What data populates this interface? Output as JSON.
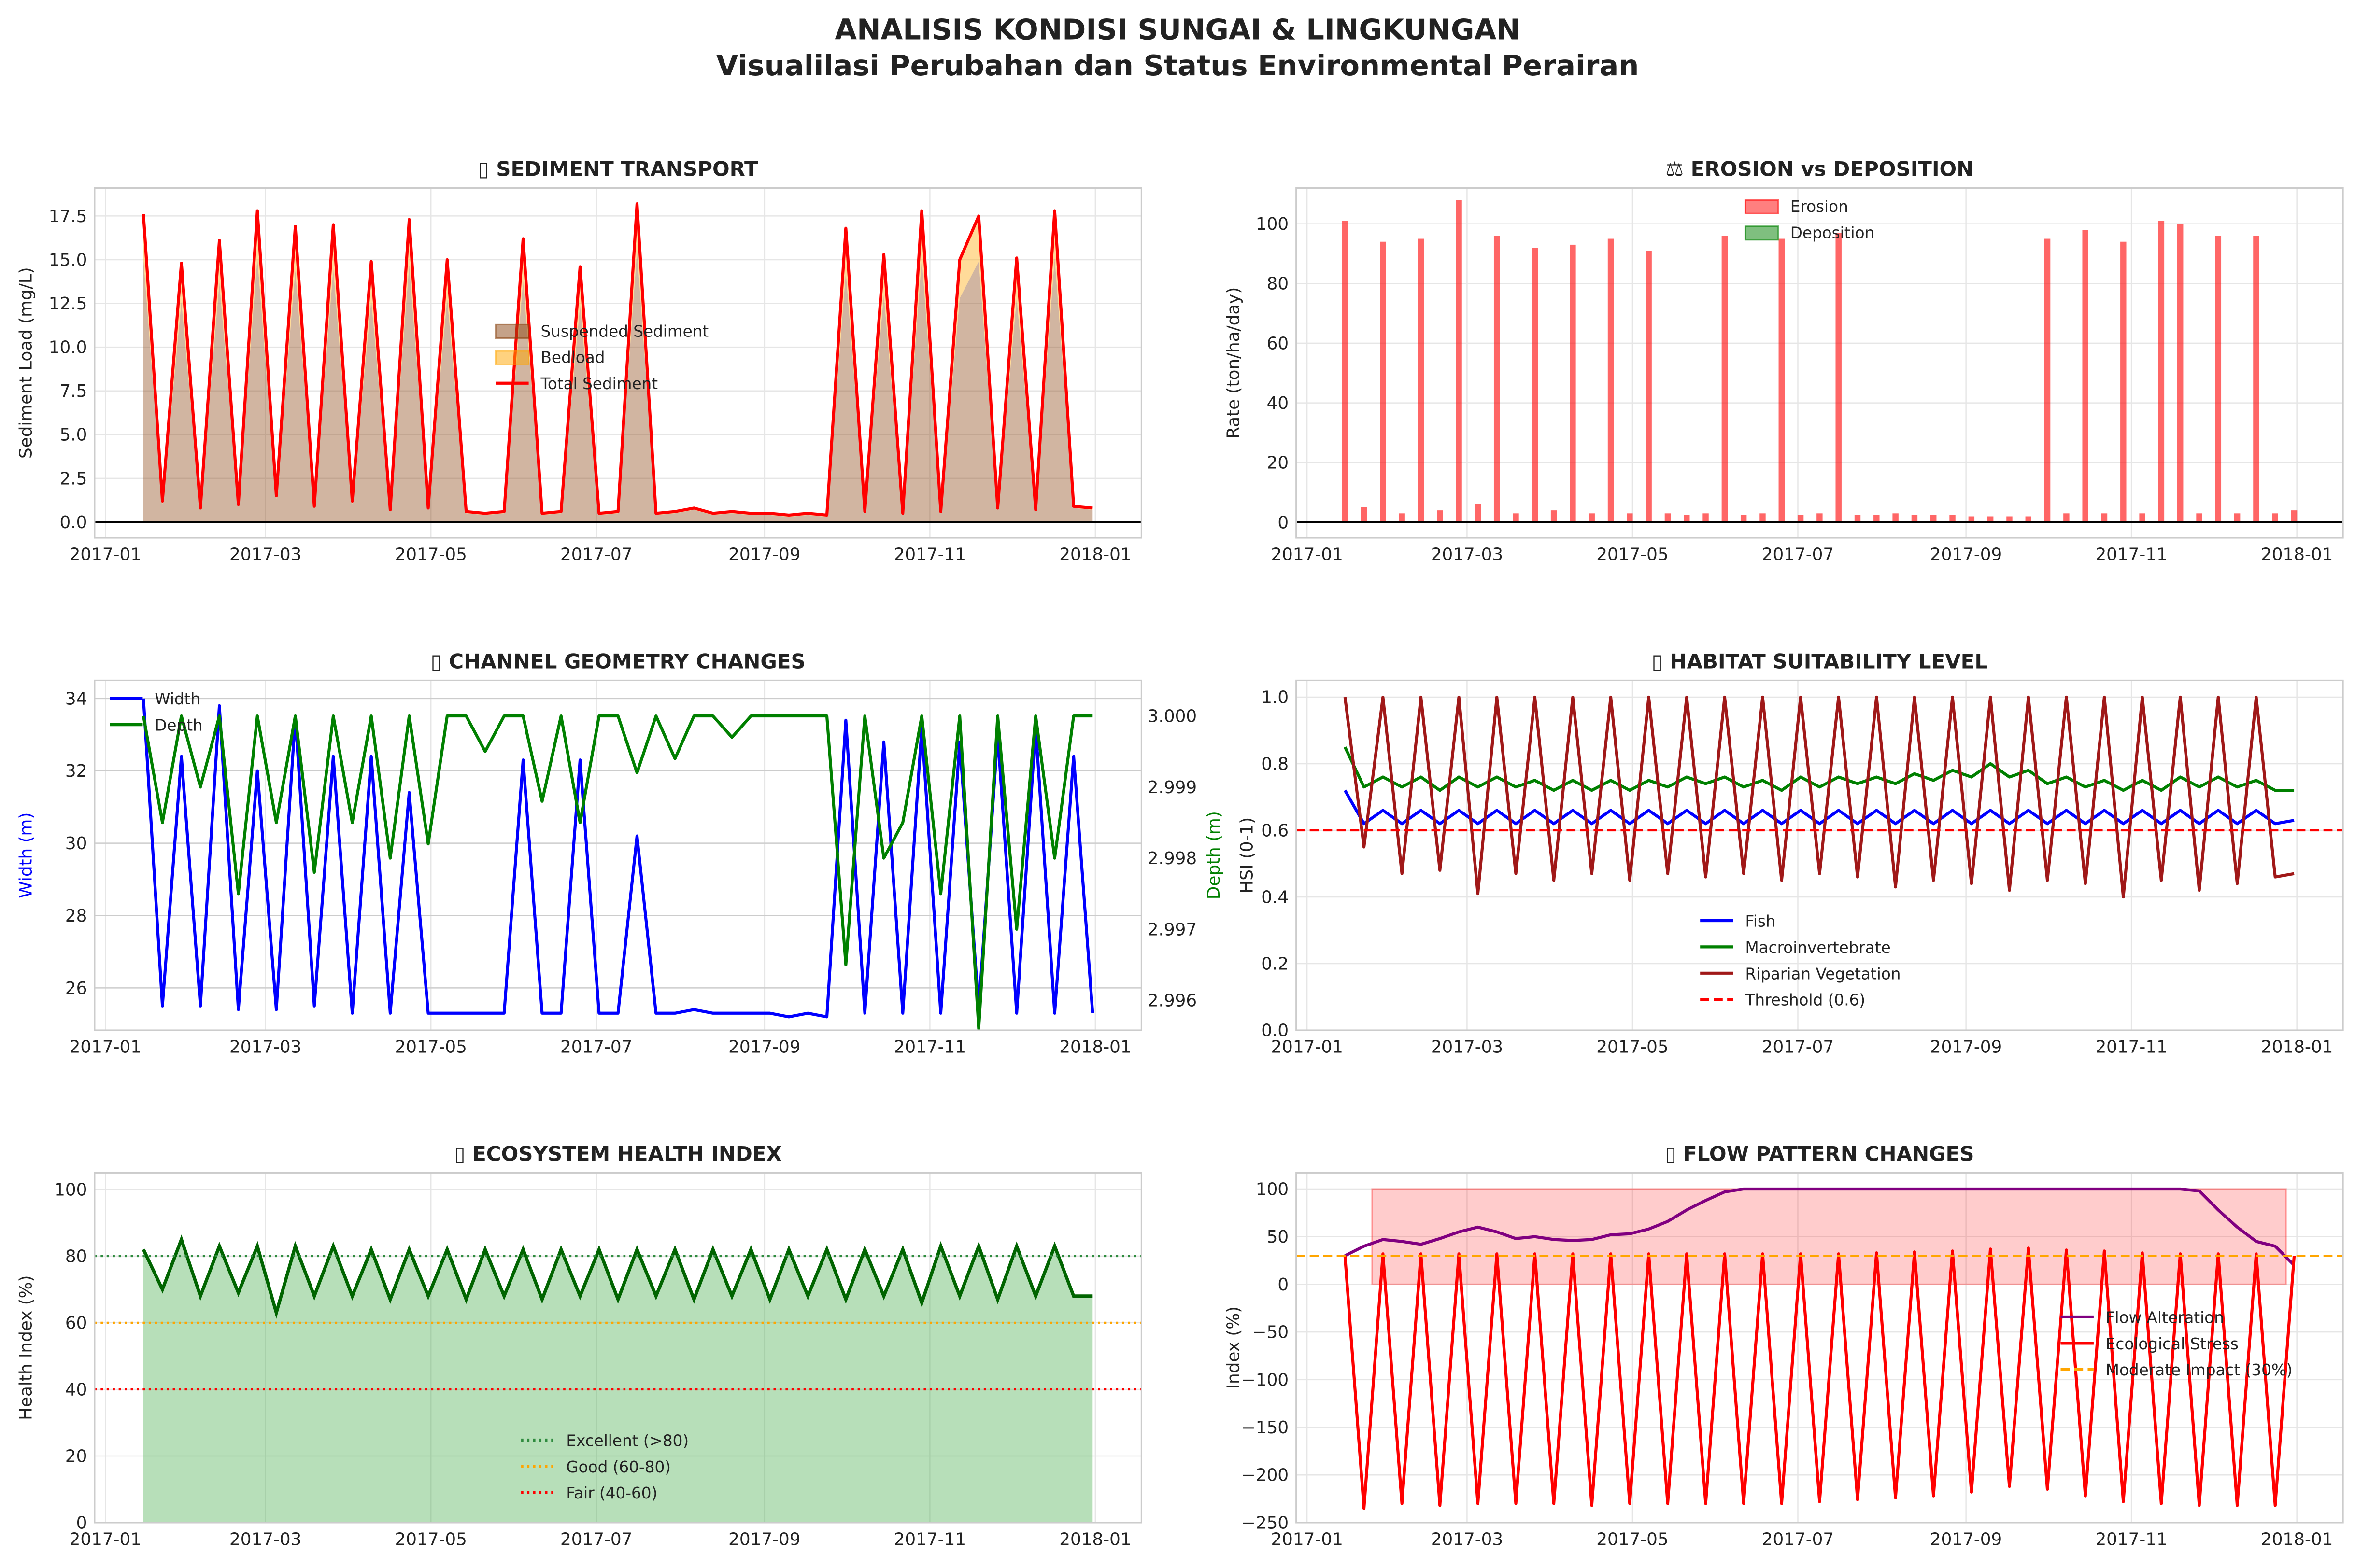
{
  "figure": {
    "title_line1": "ANALISIS KONDISI SUNGAI & LINGKUNGAN",
    "title_line2": "Visualilasi Perubahan dan Status Environmental Perairan"
  },
  "chart_data": [
    {
      "type": "line",
      "title": "▯ SEDIMENT TRANSPORT",
      "ylabel": "Sediment Load (mg/L)",
      "xlim": [
        "2016-12-28",
        "2018-01-18"
      ],
      "ylim": [
        -0.9,
        19.1
      ],
      "yticks": [
        0,
        2.5,
        5,
        7.5,
        10,
        12.5,
        15,
        17.5
      ],
      "ytick_labels": [
        "0.0",
        "2.5",
        "5.0",
        "7.5",
        "10.0",
        "12.5",
        "15.0",
        "17.5"
      ],
      "xtick_labels": [
        "2017-01",
        "2017-03",
        "2017-05",
        "2017-07",
        "2017-09",
        "2017-11",
        "2018-01"
      ],
      "x_start": "2017-01-15",
      "x_step_days": 7,
      "legend": "center",
      "series": [
        {
          "name": "Suspended Sediment",
          "kind": "area",
          "color": "#8b4513",
          "values": [
            15.0,
            1.0,
            12.6,
            0.7,
            13.7,
            0.9,
            15.1,
            1.3,
            14.4,
            0.8,
            14.5,
            1.0,
            12.7,
            0.6,
            14.7,
            0.7,
            12.8,
            0.5,
            0.4,
            0.5,
            13.8,
            0.4,
            0.5,
            12.4,
            0.4,
            0.5,
            15.5,
            0.4,
            0.5,
            0.7,
            0.4,
            0.5,
            0.4,
            0.4,
            0.3,
            0.4,
            0.3,
            14.3,
            0.5,
            13.0,
            0.4,
            15.1,
            0.5,
            12.8,
            14.9,
            0.7,
            12.8,
            0.6,
            15.1,
            0.8,
            0.7
          ]
        },
        {
          "name": "Bedload",
          "kind": "stacked-area",
          "color": "#ffa500",
          "values": [
            2.6,
            0.2,
            2.2,
            0.1,
            2.4,
            0.1,
            2.7,
            0.2,
            2.5,
            0.1,
            2.5,
            0.2,
            2.2,
            0.1,
            2.6,
            0.1,
            2.2,
            0.1,
            0.1,
            0.1,
            2.4,
            0.1,
            0.1,
            2.2,
            0.1,
            0.1,
            2.7,
            0.1,
            0.1,
            0.1,
            0.1,
            0.1,
            0.1,
            0.1,
            0.1,
            0.1,
            0.1,
            2.5,
            0.1,
            2.3,
            0.1,
            2.7,
            0.1,
            2.2,
            2.6,
            0.1,
            2.3,
            0.1,
            2.7,
            0.1,
            0.1
          ]
        },
        {
          "name": "Total Sediment",
          "kind": "line",
          "color": "#ff0000",
          "values": [
            17.6,
            1.2,
            14.8,
            0.8,
            16.1,
            1.0,
            17.8,
            1.5,
            16.9,
            0.9,
            17.0,
            1.2,
            14.9,
            0.7,
            17.3,
            0.8,
            15.0,
            0.6,
            0.5,
            0.6,
            16.2,
            0.5,
            0.6,
            14.6,
            0.5,
            0.6,
            18.2,
            0.5,
            0.6,
            0.8,
            0.5,
            0.6,
            0.5,
            0.5,
            0.4,
            0.5,
            0.4,
            16.8,
            0.6,
            15.3,
            0.5,
            17.8,
            0.6,
            15.0,
            17.5,
            0.8,
            15.1,
            0.7,
            17.8,
            0.9,
            0.8
          ]
        }
      ],
      "hlines": [
        {
          "label": "",
          "value": 0,
          "color": "#000000",
          "style": "solid"
        }
      ]
    },
    {
      "type": "bar",
      "title": "⚖ EROSION vs DEPOSITION",
      "ylabel": "Rate (ton/ha/day)",
      "xlim": [
        "2016-12-28",
        "2018-01-18"
      ],
      "ylim": [
        -5.2,
        112
      ],
      "yticks": [
        0,
        20,
        40,
        60,
        80,
        100
      ],
      "ytick_labels": [
        "0",
        "20",
        "40",
        "60",
        "80",
        "100"
      ],
      "xtick_labels": [
        "2017-01",
        "2017-03",
        "2017-05",
        "2017-07",
        "2017-09",
        "2017-11",
        "2018-01"
      ],
      "x_start": "2017-01-15",
      "x_step_days": 7,
      "legend": "upper center",
      "series": [
        {
          "name": "Erosion",
          "kind": "bar",
          "color": "#ff0000",
          "values": [
            101,
            5,
            94,
            3,
            95,
            4,
            108,
            6,
            96,
            3,
            92,
            4,
            93,
            3,
            95,
            3,
            91,
            3,
            2.5,
            3,
            96,
            2.5,
            3,
            95,
            2.5,
            3,
            97,
            2.5,
            2.5,
            3,
            2.5,
            2.5,
            2.5,
            2,
            2,
            2,
            2,
            95,
            3,
            98,
            3,
            94,
            3,
            101,
            100,
            3,
            96,
            3,
            96,
            3,
            4
          ]
        },
        {
          "name": "Deposition",
          "kind": "bar",
          "color": "#008000",
          "values": [
            0,
            0,
            0,
            0,
            0,
            0,
            0,
            0,
            0,
            0,
            0,
            0,
            0,
            0,
            0,
            0,
            0,
            0,
            0,
            0,
            0,
            0,
            0,
            0,
            0,
            0,
            0,
            0,
            0,
            0,
            0,
            0,
            0,
            0,
            0,
            0,
            0,
            0,
            0,
            0,
            0,
            0,
            0,
            0,
            0,
            0,
            0,
            0,
            0,
            0,
            0
          ]
        }
      ],
      "hlines": [
        {
          "label": "",
          "value": 0,
          "color": "#000000",
          "style": "solid"
        }
      ]
    },
    {
      "type": "line",
      "title": "▯ CHANNEL GEOMETRY CHANGES",
      "ylabel": "Width (m)",
      "ylabel_color": "#0000ff",
      "ylabel_right": "Depth (m)",
      "ylabel_right_color": "#008000",
      "xlim": [
        "2016-12-28",
        "2018-01-18"
      ],
      "ylim": [
        24.83,
        34.5
      ],
      "ylim_right": [
        2.99558,
        3.0005
      ],
      "yticks": [
        26,
        28,
        30,
        32,
        34
      ],
      "ytick_labels": [
        "26",
        "28",
        "30",
        "32",
        "34"
      ],
      "yticks_right": [
        2.996,
        2.997,
        2.998,
        2.999,
        3.0
      ],
      "ytick_labels_right": [
        "2.996",
        "2.997",
        "2.998",
        "2.999",
        "3.000"
      ],
      "xtick_labels": [
        "2017-01",
        "2017-03",
        "2017-05",
        "2017-07",
        "2017-09",
        "2017-11",
        "2018-01"
      ],
      "x_start": "2017-01-15",
      "x_step_days": 7,
      "legend": "upper left",
      "series": [
        {
          "name": "Width",
          "kind": "line",
          "axis": "left",
          "color": "#0000ff",
          "values": [
            34,
            25.5,
            32.4,
            25.5,
            33.8,
            25.4,
            32,
            25.4,
            33.5,
            25.5,
            32.4,
            25.3,
            32.4,
            25.3,
            31.4,
            25.3,
            25.3,
            25.3,
            25.3,
            25.3,
            32.3,
            25.3,
            25.3,
            32.3,
            25.3,
            25.3,
            30.2,
            25.3,
            25.3,
            25.4,
            25.3,
            25.3,
            25.3,
            25.3,
            25.2,
            25.3,
            25.2,
            33.4,
            25.3,
            32.8,
            25.3,
            33.2,
            25.3,
            32.8,
            25.4,
            33.0,
            25.3,
            33.2,
            25.3,
            32.4,
            25.3
          ]
        },
        {
          "name": "Depth",
          "kind": "line",
          "axis": "right",
          "color": "#008000",
          "values": [
            3.0,
            2.9985,
            3.0,
            2.999,
            3.0,
            2.9975,
            3.0,
            2.9985,
            3.0,
            2.9978,
            3.0,
            2.9985,
            3.0,
            2.998,
            3.0,
            2.9982,
            3.0,
            3.0,
            2.9995,
            3.0,
            3.0,
            2.9988,
            3.0,
            2.9985,
            3.0,
            3.0,
            2.9992,
            3.0,
            2.9994,
            3.0,
            3.0,
            2.9997,
            3.0,
            3.0,
            3.0,
            3.0,
            3.0,
            2.9965,
            3.0,
            2.998,
            2.9985,
            3.0,
            2.9975,
            3.0,
            2.9956,
            3.0,
            2.997,
            3.0,
            2.998,
            3.0,
            3.0
          ]
        }
      ],
      "hlines": []
    },
    {
      "type": "line",
      "title": "▯ HABITAT SUITABILITY LEVEL",
      "ylabel": "HSI (0-1)",
      "xlim": [
        "2016-12-28",
        "2018-01-18"
      ],
      "ylim": [
        0,
        1.05
      ],
      "yticks": [
        0,
        0.2,
        0.4,
        0.6,
        0.8,
        1.0
      ],
      "ytick_labels": [
        "0.0",
        "0.2",
        "0.4",
        "0.6",
        "0.8",
        "1.0"
      ],
      "xtick_labels": [
        "2017-01",
        "2017-03",
        "2017-05",
        "2017-07",
        "2017-09",
        "2017-11",
        "2018-01"
      ],
      "x_start": "2017-01-15",
      "x_step_days": 7,
      "legend": "lower center",
      "series": [
        {
          "name": "Fish",
          "kind": "line",
          "color": "#0000ff",
          "values": [
            0.72,
            0.62,
            0.66,
            0.62,
            0.66,
            0.62,
            0.66,
            0.62,
            0.66,
            0.62,
            0.66,
            0.62,
            0.66,
            0.62,
            0.66,
            0.62,
            0.66,
            0.62,
            0.66,
            0.62,
            0.66,
            0.62,
            0.66,
            0.62,
            0.66,
            0.62,
            0.66,
            0.62,
            0.66,
            0.62,
            0.66,
            0.62,
            0.66,
            0.62,
            0.66,
            0.62,
            0.66,
            0.62,
            0.66,
            0.62,
            0.66,
            0.62,
            0.66,
            0.62,
            0.66,
            0.62,
            0.66,
            0.62,
            0.66,
            0.62,
            0.63
          ]
        },
        {
          "name": "Macroinvertebrate",
          "kind": "line",
          "color": "#008000",
          "values": [
            0.85,
            0.73,
            0.76,
            0.73,
            0.76,
            0.72,
            0.76,
            0.73,
            0.76,
            0.73,
            0.75,
            0.72,
            0.75,
            0.72,
            0.75,
            0.72,
            0.75,
            0.73,
            0.76,
            0.74,
            0.76,
            0.73,
            0.75,
            0.72,
            0.76,
            0.73,
            0.76,
            0.74,
            0.76,
            0.74,
            0.77,
            0.75,
            0.78,
            0.76,
            0.8,
            0.76,
            0.78,
            0.74,
            0.76,
            0.73,
            0.75,
            0.72,
            0.75,
            0.72,
            0.76,
            0.73,
            0.76,
            0.73,
            0.75,
            0.72,
            0.72
          ]
        },
        {
          "name": "Riparian Vegetation",
          "kind": "line",
          "color": "#a01818",
          "values": [
            1.0,
            0.55,
            1.0,
            0.47,
            1.0,
            0.48,
            1.0,
            0.41,
            1.0,
            0.47,
            1.0,
            0.45,
            1.0,
            0.47,
            1.0,
            0.45,
            1.0,
            0.47,
            1.0,
            0.46,
            1.0,
            0.47,
            1.0,
            0.45,
            1.0,
            0.47,
            1.0,
            0.46,
            1.0,
            0.43,
            1.0,
            0.45,
            1.0,
            0.44,
            1.0,
            0.42,
            1.0,
            0.45,
            1.0,
            0.44,
            1.0,
            0.4,
            1.0,
            0.45,
            1.0,
            0.42,
            1.0,
            0.44,
            1.0,
            0.46,
            0.47
          ]
        }
      ],
      "hlines": [
        {
          "label": "Threshold (0.6)",
          "value": 0.6,
          "color": "#ff0000",
          "style": "dashed"
        }
      ]
    },
    {
      "type": "area",
      "title": "▯ ECOSYSTEM HEALTH INDEX",
      "ylabel": "Health Index (%)",
      "xlim": [
        "2016-12-28",
        "2018-01-18"
      ],
      "ylim": [
        0,
        105
      ],
      "yticks": [
        0,
        20,
        40,
        60,
        80,
        100
      ],
      "ytick_labels": [
        "0",
        "20",
        "40",
        "60",
        "80",
        "100"
      ],
      "xtick_labels": [
        "2017-01",
        "2017-03",
        "2017-05",
        "2017-07",
        "2017-09",
        "2017-11",
        "2018-01"
      ],
      "x_start": "2017-01-15",
      "x_step_days": 7,
      "legend": "lower center",
      "series": [
        {
          "name": "Health Index",
          "kind": "area-line",
          "color": "#006400",
          "fill": "#4caf50",
          "values": [
            82,
            70,
            85,
            68,
            83,
            69,
            83,
            63,
            83,
            68,
            83,
            68,
            82,
            67,
            82,
            68,
            82,
            67,
            82,
            68,
            82,
            67,
            82,
            68,
            82,
            67,
            82,
            68,
            82,
            67,
            82,
            68,
            82,
            67,
            82,
            68,
            82,
            67,
            82,
            68,
            82,
            66,
            83,
            68,
            83,
            67,
            83,
            68,
            83,
            68,
            68
          ]
        }
      ],
      "hlines": [
        {
          "label": "Excellent (>80)",
          "value": 80,
          "color": "#2e8b3e",
          "style": "dotted"
        },
        {
          "label": "Good (60-80)",
          "value": 60,
          "color": "#ffa500",
          "style": "dotted"
        },
        {
          "label": "Fair (40-60)",
          "value": 40,
          "color": "#ff0000",
          "style": "dotted"
        }
      ]
    },
    {
      "type": "line",
      "title": "▯ FLOW PATTERN CHANGES",
      "ylabel": "Index (%)",
      "xlim": [
        "2016-12-28",
        "2018-01-18"
      ],
      "ylim": [
        -250,
        117
      ],
      "yticks": [
        -250,
        -200,
        -150,
        -100,
        -50,
        0,
        50,
        100
      ],
      "ytick_labels": [
        "−250",
        "−200",
        "−150",
        "−100",
        "−50",
        "0",
        "50",
        "100"
      ],
      "xtick_labels": [
        "2017-01",
        "2017-03",
        "2017-05",
        "2017-07",
        "2017-09",
        "2017-11",
        "2018-01"
      ],
      "x_start": "2017-01-15",
      "x_step_days": 7,
      "legend": "center right",
      "span": {
        "from": "2017-01-25",
        "to": "2017-12-28",
        "low": 0,
        "high": 100,
        "color": "#ff0000"
      },
      "series": [
        {
          "name": "Flow Alteration",
          "kind": "line",
          "color": "#800080",
          "values": [
            30,
            40,
            47,
            45,
            42,
            48,
            55,
            60,
            55,
            48,
            50,
            47,
            46,
            47,
            52,
            53,
            58,
            66,
            78,
            88,
            97,
            100,
            100,
            100,
            100,
            100,
            100,
            100,
            100,
            100,
            100,
            100,
            100,
            100,
            100,
            100,
            100,
            100,
            100,
            100,
            100,
            100,
            100,
            100,
            100,
            98,
            78,
            60,
            45,
            40,
            20
          ]
        },
        {
          "name": "Ecological Stress",
          "kind": "line",
          "color": "#ff0000",
          "values": [
            30,
            -235,
            32,
            -230,
            32,
            -232,
            32,
            -230,
            32,
            -230,
            32,
            -230,
            32,
            -232,
            32,
            -230,
            32,
            -230,
            32,
            -230,
            32,
            -230,
            32,
            -230,
            32,
            -228,
            32,
            -226,
            33,
            -224,
            34,
            -222,
            35,
            -218,
            37,
            -212,
            38,
            -215,
            36,
            -222,
            35,
            -228,
            33,
            -230,
            32,
            -232,
            32,
            -232,
            32,
            -232,
            30
          ]
        }
      ],
      "hlines": [
        {
          "label": "Moderate Impact (30%)",
          "value": 30,
          "color": "#ffa500",
          "style": "dashed"
        }
      ]
    }
  ]
}
